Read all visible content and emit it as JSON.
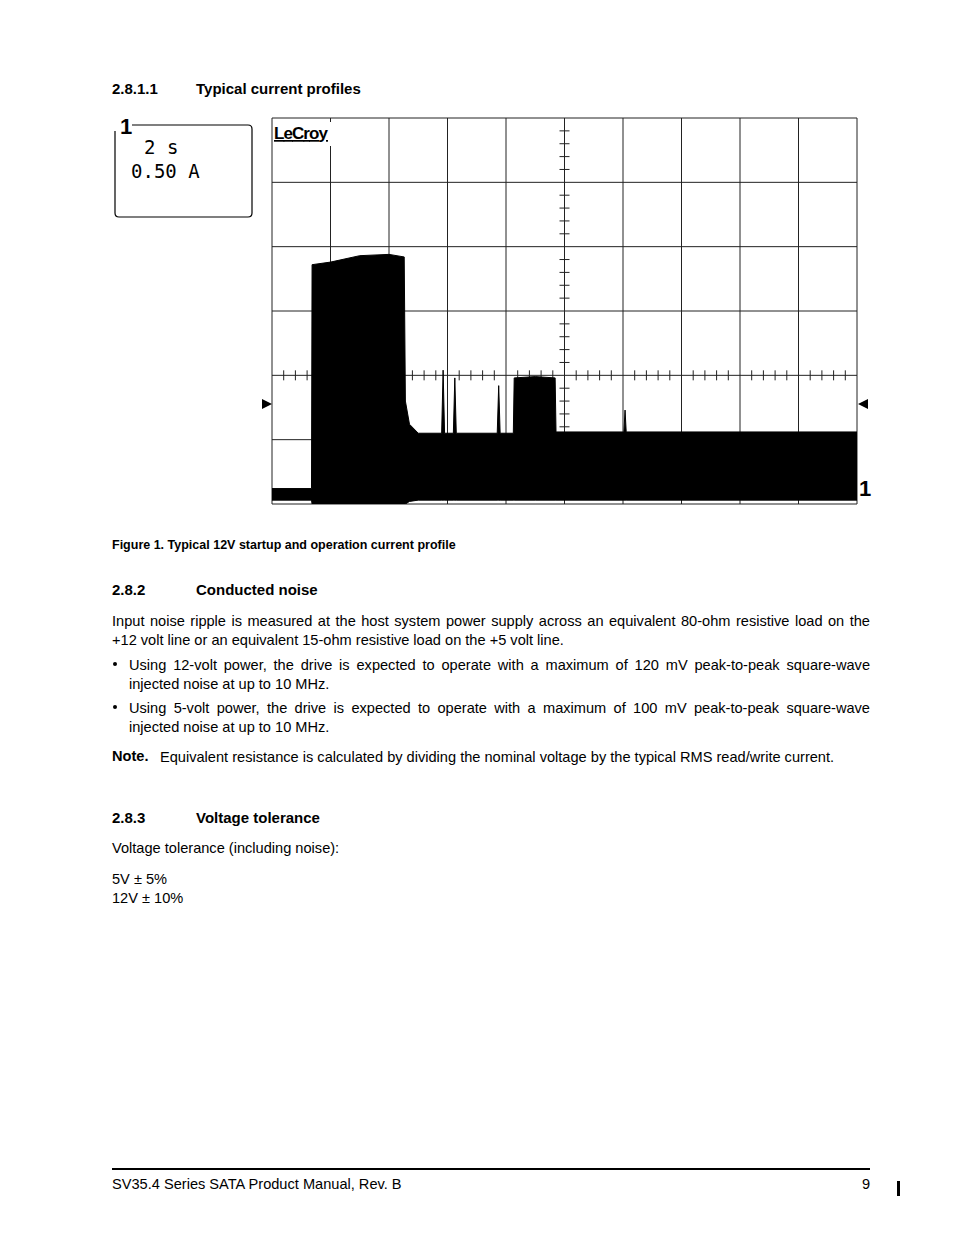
{
  "section": {
    "number": "2.8.1.1",
    "title": "Typical current profiles"
  },
  "chart_data": {
    "type": "band",
    "annotations": [
      "1",
      "2 s",
      "0.50 A",
      "LeCroy",
      "1"
    ],
    "x": [
      0,
      1.35,
      1.37,
      2.0,
      3.0,
      4.0,
      4.52,
      4.56,
      4.7,
      5.0,
      5.8,
      5.85,
      5.9,
      6.2,
      6.25,
      6.3,
      7.7,
      7.75,
      7.8,
      8.25,
      8.28,
      9.0,
      9.68,
      9.71,
      12.03,
      12.07,
      12.11,
      20
    ],
    "series": [
      {
        "color": "#000000",
        "values": [
          0.12,
          0.12,
          1.86,
          1.88,
          1.93,
          1.94,
          1.92,
          0.8,
          0.62,
          0.55,
          0.55,
          1.04,
          0.55,
          0.55,
          0.98,
          0.55,
          0.55,
          0.92,
          0.55,
          0.55,
          0.98,
          0.99,
          0.98,
          0.56,
          0.56,
          0.73,
          0.56,
          0.56
        ]
      },
      {
        "color": "#000000",
        "values": [
          0.03,
          0.03,
          0.0,
          0.0,
          0.0,
          0.0,
          0.0,
          0.0,
          0.02,
          0.03,
          0.03,
          0.03,
          0.03,
          0.03,
          0.03,
          0.03,
          0.03,
          0.03,
          0.03,
          0.03,
          0.03,
          0.03,
          0.03,
          0.03,
          0.03,
          0.03,
          0.03,
          0.03
        ]
      }
    ],
    "xlim": [
      0,
      20
    ],
    "xticks": [
      0,
      2,
      4,
      6,
      8,
      10,
      12,
      14,
      16,
      18,
      20
    ],
    "ylim": [
      0,
      3
    ],
    "yticks": [
      0,
      0.5,
      1,
      1.5,
      2,
      2.5,
      3
    ],
    "grid": true,
    "tick_labels": false
  },
  "figure_caption": "Figure 1. Typical 12V startup and operation current profile",
  "sections": [
    {
      "number": "2.8.2",
      "title": "Conducted noise",
      "paragraphs": [
        "Input noise ripple is measured at the host system power supply across an equivalent 80-ohm resistive load on the +12 volt line or an equivalent 15-ohm resistive load on the +5 volt line."
      ],
      "bullets": [
        "Using 12-volt power, the drive is expected to operate with a maximum of 120 mV peak-to-peak square-wave injected noise at up to 10 MHz.",
        "Using 5-volt power, the drive is expected to operate with a maximum of 100 mV peak-to-peak square-wave injected noise at up to 10 MHz."
      ],
      "note": {
        "label": "Note.",
        "text": "Equivalent resistance is calculated by dividing the nominal voltage by the typical RMS read/write current."
      }
    },
    {
      "number": "2.8.3",
      "title": "Voltage tolerance",
      "paragraphs": [
        "Voltage tolerance (including noise):"
      ],
      "lines": [
        "5V ± 5%",
        "12V ± 10%"
      ]
    }
  ],
  "footer": {
    "title": "SV35.4 Series SATA Product Manual, Rev. B",
    "page": 9
  }
}
